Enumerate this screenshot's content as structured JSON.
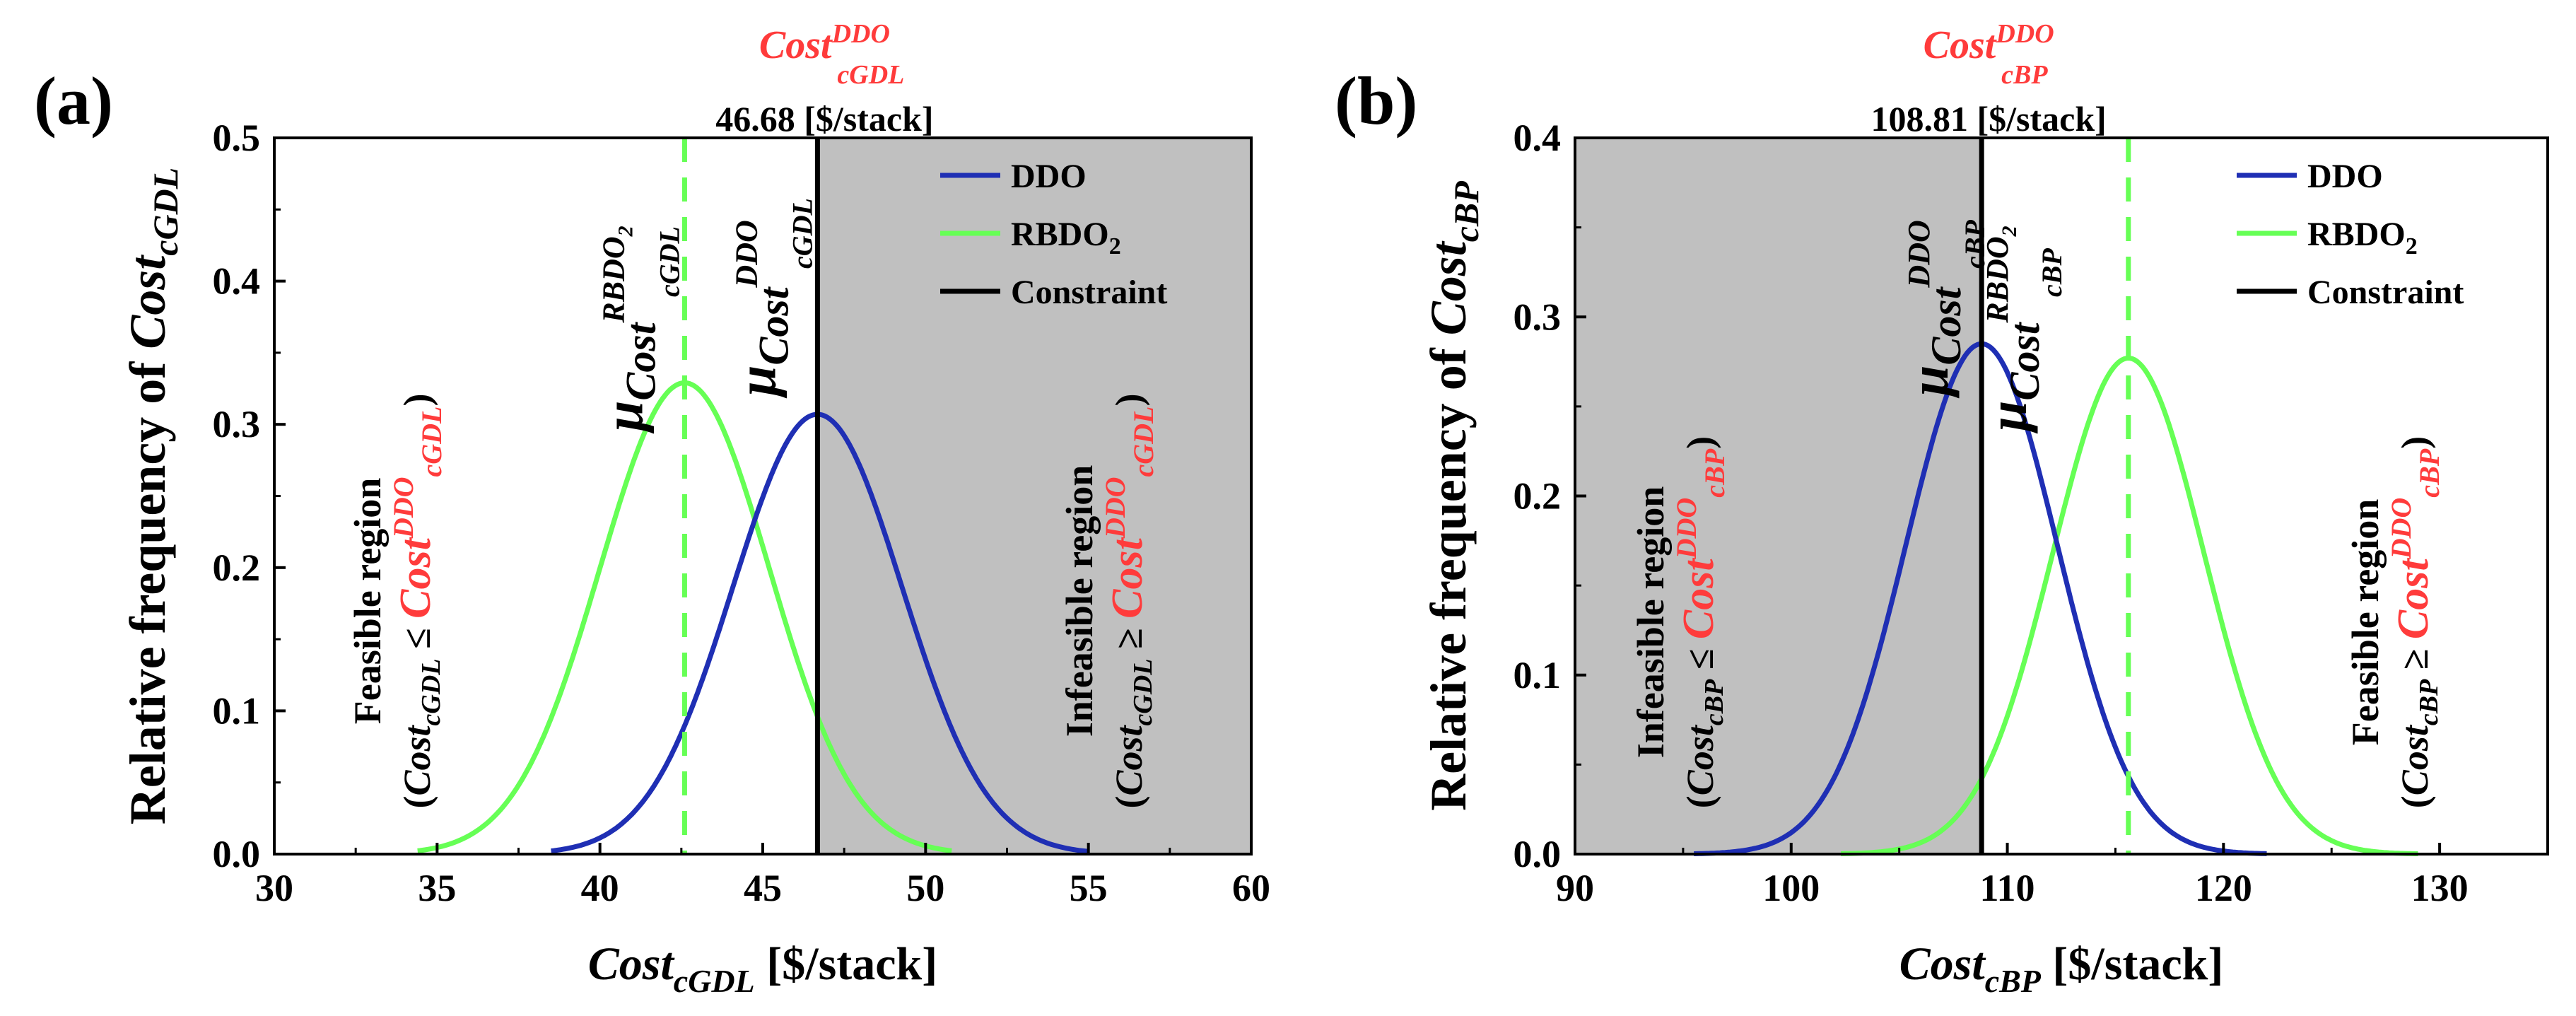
{
  "chart_data": [
    {
      "id": "a",
      "type": "line",
      "panel_label": "(a)",
      "xlabel_main": "Cost",
      "xlabel_sub": "cGDL",
      "xlabel_unit": " [$/stack]",
      "ylabel_main": "Relative frequency of ",
      "ylabel_cost": "Cost",
      "ylabel_sub": "cGDL",
      "xlim": [
        30,
        60
      ],
      "ylim": [
        0,
        0.5
      ],
      "xticks": [
        "30",
        "35",
        "40",
        "45",
        "50",
        "55",
        "60"
      ],
      "yticks": [
        "0.0",
        "0.1",
        "0.2",
        "0.3",
        "0.4",
        "0.5"
      ],
      "series": [
        {
          "name": "DDO",
          "color": "#1f2fb4",
          "mean": 46.68,
          "peak": 0.307,
          "sigma": 2.6,
          "range": [
            38.5,
            55.0
          ]
        },
        {
          "name": "RBDO",
          "color": "#66ff55",
          "mean": 42.6,
          "peak": 0.329,
          "sigma": 2.6,
          "range": [
            34.4,
            50.8
          ]
        }
      ],
      "constraint": {
        "name": "Constraint",
        "x": 46.68,
        "label_value": "46.68",
        "label_unit": "[$/stack]",
        "label_top_main": "Cost",
        "label_top_sup": "DDO",
        "label_top_sub": "cGDL"
      },
      "rbdo_line_x": 42.6,
      "shaded_region": "right",
      "legend": {
        "position": "top-right",
        "entries": [
          "DDO",
          "RBDO",
          "Constraint"
        ],
        "rbdo_sub": "2"
      },
      "annotations": {
        "mu": "μ",
        "mu_rbdo_cost": "Cost",
        "mu_rbdo_sup": "RBDO",
        "mu_rbdo_sup2": "2",
        "mu_rbdo_sub": "cGDL",
        "mu_ddo_cost": "Cost",
        "mu_ddo_sup": "DDO",
        "mu_ddo_sub": "cGDL",
        "region_left_title": "Feasible region",
        "region_left_cost": "Cost",
        "region_left_sub": "cGDL",
        "region_left_op": " ≤ ",
        "region_left_rhs": "Cost",
        "region_left_rhs_sup": "DDO",
        "region_left_rhs_sub": "cGDL",
        "region_right_title": "Infeasible region",
        "region_right_cost": "Cost",
        "region_right_sub": "cGDL",
        "region_right_op": " ≥ ",
        "region_right_rhs": "Cost",
        "region_right_rhs_sup": "DDO",
        "region_right_rhs_sub": "cGDL"
      }
    },
    {
      "id": "b",
      "type": "line",
      "panel_label": "(b)",
      "xlabel_main": "Cost",
      "xlabel_sub": "cBP",
      "xlabel_unit": " [$/stack]",
      "ylabel_main": "Relative frequency of ",
      "ylabel_cost": "Cost",
      "ylabel_sub": "cBP",
      "xlim": [
        90,
        135
      ],
      "ylim": [
        0,
        0.4
      ],
      "xticks": [
        "90",
        "100",
        "110",
        "120",
        "130"
      ],
      "yticks": [
        "0.0",
        "0.1",
        "0.2",
        "0.3",
        "0.4"
      ],
      "series": [
        {
          "name": "DDO",
          "color": "#1f2fb4",
          "mean": 108.81,
          "peak": 0.285,
          "sigma": 3.5,
          "range": [
            95.5,
            122.0
          ]
        },
        {
          "name": "RBDO",
          "color": "#66ff55",
          "mean": 115.6,
          "peak": 0.277,
          "sigma": 3.5,
          "range": [
            102.3,
            129.0
          ]
        }
      ],
      "constraint": {
        "name": "Constraint",
        "x": 108.81,
        "label_value": "108.81",
        "label_unit": "[$/stack]",
        "label_top_main": "Cost",
        "label_top_sup": "DDO",
        "label_top_sub": "cBP"
      },
      "rbdo_line_x": 115.6,
      "shaded_region": "left",
      "legend": {
        "position": "top-right",
        "entries": [
          "DDO",
          "RBDO",
          "Constraint"
        ],
        "rbdo_sub": "2"
      },
      "annotations": {
        "mu": "μ",
        "mu_rbdo_cost": "Cost",
        "mu_rbdo_sup": "RBDO",
        "mu_rbdo_sup2": "2",
        "mu_rbdo_sub": "cBP",
        "mu_ddo_cost": "Cost",
        "mu_ddo_sup": "DDO",
        "mu_ddo_sub": "cBP",
        "region_left_title": "Infeasible region",
        "region_left_cost": "Cost",
        "region_left_sub": "cBP",
        "region_left_op": " ≤ ",
        "region_left_rhs": "Cost",
        "region_left_rhs_sup": "DDO",
        "region_left_rhs_sub": "cBP",
        "region_right_title": "Feasible region",
        "region_right_cost": "Cost",
        "region_right_sub": "cBP",
        "region_right_op": " ≥ ",
        "region_right_rhs": "Cost",
        "region_right_rhs_sup": "DDO",
        "region_right_rhs_sub": "cBP"
      }
    }
  ]
}
